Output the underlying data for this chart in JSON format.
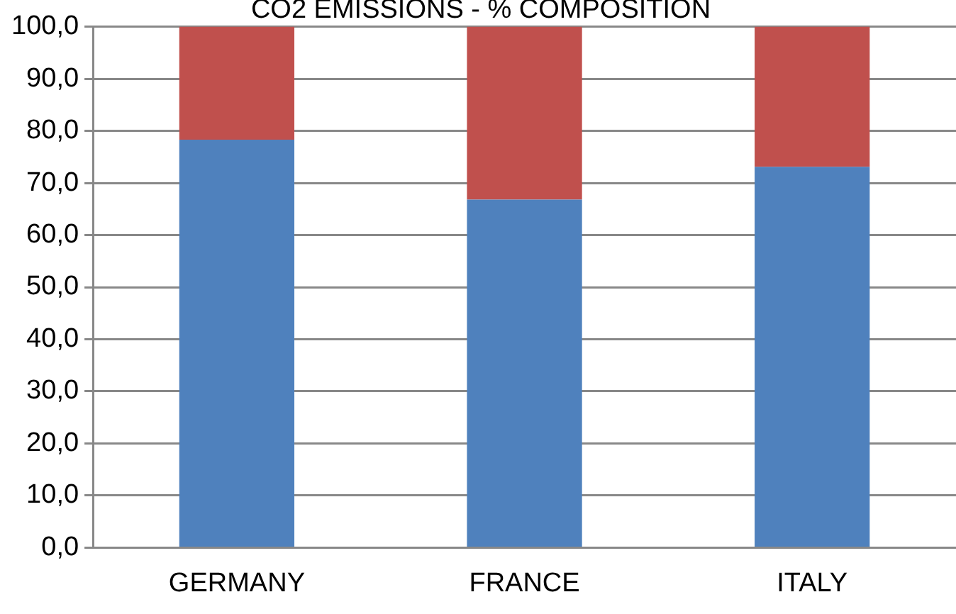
{
  "chart_data": {
    "type": "bar",
    "title": "CO2 EMISSIONS - % COMPOSITION",
    "categories": [
      "GERMANY",
      "FRANCE",
      "ITALY"
    ],
    "stacked": true,
    "series": [
      {
        "color": "#4f81bd",
        "values": [
          78.3,
          66.8,
          73.1
        ]
      },
      {
        "color": "#c0504d",
        "values": [
          21.7,
          33.2,
          26.9
        ]
      }
    ],
    "ylim": [
      0,
      100
    ],
    "yticks": [
      {
        "value": 0,
        "label": "0,0"
      },
      {
        "value": 10,
        "label": "10,0"
      },
      {
        "value": 20,
        "label": "20,0"
      },
      {
        "value": 30,
        "label": "30,0"
      },
      {
        "value": 40,
        "label": "40,0"
      },
      {
        "value": 50,
        "label": "50,0"
      },
      {
        "value": 60,
        "label": "60,0"
      },
      {
        "value": 70,
        "label": "70,0"
      },
      {
        "value": 80,
        "label": "80,0"
      },
      {
        "value": 90,
        "label": "90,0"
      },
      {
        "value": 100,
        "label": "100,0"
      }
    ],
    "grid": "y",
    "legend": false
  }
}
